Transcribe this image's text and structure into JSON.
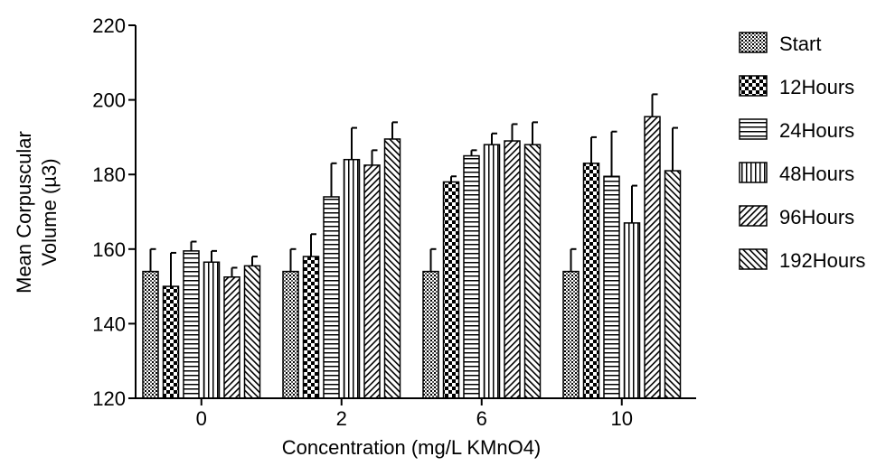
{
  "chart_data": {
    "type": "bar",
    "xlabel": "Concentration (mg/L KMnO4)",
    "ylabel": "Mean Corpuscular Volume (µ3)",
    "ylabel_lines": [
      "Mean Corpuscular",
      "Volume (µ3)"
    ],
    "ylim": [
      120,
      220
    ],
    "yticks": [
      120,
      140,
      160,
      180,
      200,
      220
    ],
    "categories": [
      "0",
      "2",
      "6",
      "10"
    ],
    "series": [
      {
        "name": "Start",
        "pattern": "grid",
        "values": [
          154,
          154,
          154,
          154
        ],
        "errors": [
          6,
          6,
          6,
          6
        ]
      },
      {
        "name": "12Hours",
        "pattern": "checker",
        "values": [
          150,
          158,
          178,
          183
        ],
        "errors": [
          9,
          6,
          1.5,
          7
        ]
      },
      {
        "name": "24Hours",
        "pattern": "hlines",
        "values": [
          159.5,
          174,
          185,
          179.5
        ],
        "errors": [
          2.5,
          9,
          1.5,
          12
        ]
      },
      {
        "name": "48Hours",
        "pattern": "vlines",
        "values": [
          156.5,
          184,
          188,
          167
        ],
        "errors": [
          3,
          8.5,
          3,
          10
        ]
      },
      {
        "name": "96Hours",
        "pattern": "diagfwd",
        "values": [
          152.5,
          182.5,
          189,
          195.5
        ],
        "errors": [
          2.5,
          4,
          4.5,
          6
        ]
      },
      {
        "name": "192Hours",
        "pattern": "diagback",
        "values": [
          155.5,
          189.5,
          188,
          181
        ],
        "errors": [
          2.5,
          4.5,
          6,
          11.5
        ]
      }
    ],
    "legend_position": "right",
    "grid": false
  }
}
